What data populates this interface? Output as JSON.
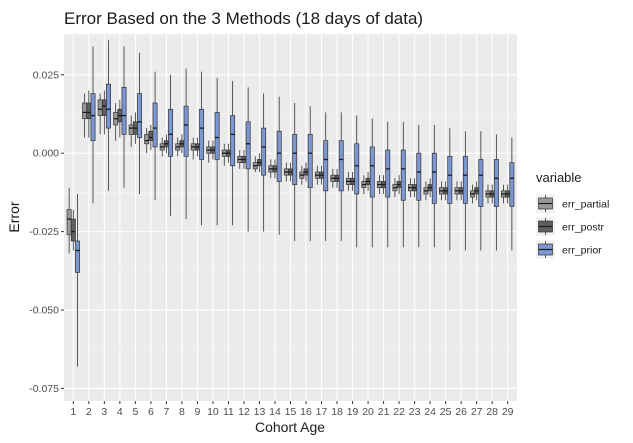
{
  "chart_data": {
    "type": "boxplot",
    "title": "Error Based on the 3 Methods (18 days of data)",
    "xlabel": "Cohort Age",
    "ylabel": "Error",
    "categories": [
      "1",
      "2",
      "3",
      "4",
      "5",
      "6",
      "7",
      "8",
      "9",
      "10",
      "11",
      "12",
      "13",
      "14",
      "15",
      "16",
      "17",
      "18",
      "19",
      "20",
      "21",
      "22",
      "23",
      "24",
      "25",
      "26",
      "27",
      "28",
      "29"
    ],
    "ylim": [
      -0.079,
      0.038
    ],
    "yticks": [
      -0.075,
      -0.05,
      -0.025,
      0.0,
      0.025
    ],
    "ytick_labels": [
      "-0.075",
      "-0.050",
      "-0.025",
      "0.000",
      "0.025"
    ],
    "grid": true,
    "legend": {
      "title": "variable",
      "placement": "right"
    },
    "series": [
      {
        "name": "err_partial",
        "color": "#999999",
        "boxes": [
          {
            "min": -0.032,
            "q1": -0.026,
            "median": -0.021,
            "q3": -0.018,
            "max": -0.011
          },
          {
            "min": 0.005,
            "q1": 0.011,
            "median": 0.013,
            "q3": 0.016,
            "max": 0.019
          },
          {
            "min": 0.006,
            "q1": 0.012,
            "median": 0.014,
            "q3": 0.017,
            "max": 0.019
          },
          {
            "min": 0.004,
            "q1": 0.009,
            "median": 0.011,
            "q3": 0.013,
            "max": 0.016
          },
          {
            "min": 0.002,
            "q1": 0.006,
            "median": 0.008,
            "q3": 0.009,
            "max": 0.012
          },
          {
            "min": 0.0,
            "q1": 0.003,
            "median": 0.004,
            "q3": 0.006,
            "max": 0.008
          },
          {
            "min": -0.001,
            "q1": 0.001,
            "median": 0.002,
            "q3": 0.003,
            "max": 0.005
          },
          {
            "min": -0.001,
            "q1": 0.001,
            "median": 0.002,
            "q3": 0.003,
            "max": 0.005
          },
          {
            "min": -0.002,
            "q1": 0.001,
            "median": 0.002,
            "q3": 0.003,
            "max": 0.005
          },
          {
            "min": -0.003,
            "q1": 0.0,
            "median": 0.001,
            "q3": 0.002,
            "max": 0.004
          },
          {
            "min": -0.004,
            "q1": -0.001,
            "median": 0.0,
            "q3": 0.001,
            "max": 0.003
          },
          {
            "min": -0.005,
            "q1": -0.003,
            "median": -0.002,
            "q3": -0.001,
            "max": 0.001
          },
          {
            "min": -0.006,
            "q1": -0.005,
            "median": -0.004,
            "q3": -0.003,
            "max": -0.001
          },
          {
            "min": -0.008,
            "q1": -0.006,
            "median": -0.005,
            "q3": -0.004,
            "max": -0.002
          },
          {
            "min": -0.009,
            "q1": -0.007,
            "median": -0.006,
            "q3": -0.005,
            "max": -0.003
          },
          {
            "min": -0.01,
            "q1": -0.008,
            "median": -0.007,
            "q3": -0.006,
            "max": -0.004
          },
          {
            "min": -0.01,
            "q1": -0.008,
            "median": -0.007,
            "q3": -0.006,
            "max": -0.004
          },
          {
            "min": -0.011,
            "q1": -0.009,
            "median": -0.008,
            "q3": -0.007,
            "max": -0.005
          },
          {
            "min": -0.012,
            "q1": -0.01,
            "median": -0.009,
            "q3": -0.008,
            "max": -0.006
          },
          {
            "min": -0.013,
            "q1": -0.011,
            "median": -0.01,
            "q3": -0.009,
            "max": -0.007
          },
          {
            "min": -0.013,
            "q1": -0.011,
            "median": -0.01,
            "q3": -0.009,
            "max": -0.007
          },
          {
            "min": -0.014,
            "q1": -0.012,
            "median": -0.011,
            "q3": -0.01,
            "max": -0.008
          },
          {
            "min": -0.014,
            "q1": -0.012,
            "median": -0.011,
            "q3": -0.01,
            "max": -0.008
          },
          {
            "min": -0.015,
            "q1": -0.013,
            "median": -0.012,
            "q3": -0.011,
            "max": -0.009
          },
          {
            "min": -0.015,
            "q1": -0.013,
            "median": -0.012,
            "q3": -0.011,
            "max": -0.009
          },
          {
            "min": -0.015,
            "q1": -0.013,
            "median": -0.012,
            "q3": -0.011,
            "max": -0.009
          },
          {
            "min": -0.016,
            "q1": -0.014,
            "median": -0.013,
            "q3": -0.012,
            "max": -0.01
          },
          {
            "min": -0.016,
            "q1": -0.014,
            "median": -0.013,
            "q3": -0.012,
            "max": -0.01
          },
          {
            "min": -0.016,
            "q1": -0.014,
            "median": -0.013,
            "q3": -0.012,
            "max": -0.01
          }
        ]
      },
      {
        "name": "err_postr",
        "color": "#5f5f5f",
        "boxes": [
          {
            "min": -0.031,
            "q1": -0.028,
            "median": -0.025,
            "q3": -0.021,
            "max": -0.018
          },
          {
            "min": 0.005,
            "q1": 0.011,
            "median": 0.013,
            "q3": 0.016,
            "max": 0.02
          },
          {
            "min": 0.006,
            "q1": 0.012,
            "median": 0.015,
            "q3": 0.017,
            "max": 0.02
          },
          {
            "min": 0.005,
            "q1": 0.01,
            "median": 0.012,
            "q3": 0.014,
            "max": 0.017
          },
          {
            "min": 0.003,
            "q1": 0.006,
            "median": 0.008,
            "q3": 0.01,
            "max": 0.013
          },
          {
            "min": 0.001,
            "q1": 0.004,
            "median": 0.005,
            "q3": 0.007,
            "max": 0.009
          },
          {
            "min": 0.0,
            "q1": 0.002,
            "median": 0.003,
            "q3": 0.004,
            "max": 0.006
          },
          {
            "min": 0.0,
            "q1": 0.002,
            "median": 0.003,
            "q3": 0.004,
            "max": 0.006
          },
          {
            "min": -0.001,
            "q1": 0.001,
            "median": 0.002,
            "q3": 0.003,
            "max": 0.005
          },
          {
            "min": -0.002,
            "q1": 0.0,
            "median": 0.001,
            "q3": 0.002,
            "max": 0.004
          },
          {
            "min": -0.003,
            "q1": -0.001,
            "median": 0.0,
            "q3": 0.001,
            "max": 0.003
          },
          {
            "min": -0.005,
            "q1": -0.003,
            "median": -0.002,
            "q3": -0.001,
            "max": 0.001
          },
          {
            "min": -0.006,
            "q1": -0.004,
            "median": -0.003,
            "q3": -0.002,
            "max": 0.0
          },
          {
            "min": -0.008,
            "q1": -0.006,
            "median": -0.005,
            "q3": -0.004,
            "max": -0.002
          },
          {
            "min": -0.009,
            "q1": -0.007,
            "median": -0.006,
            "q3": -0.005,
            "max": -0.003
          },
          {
            "min": -0.009,
            "q1": -0.007,
            "median": -0.006,
            "q3": -0.005,
            "max": -0.003
          },
          {
            "min": -0.01,
            "q1": -0.008,
            "median": -0.007,
            "q3": -0.006,
            "max": -0.004
          },
          {
            "min": -0.011,
            "q1": -0.009,
            "median": -0.008,
            "q3": -0.007,
            "max": -0.005
          },
          {
            "min": -0.012,
            "q1": -0.01,
            "median": -0.009,
            "q3": -0.008,
            "max": -0.006
          },
          {
            "min": -0.012,
            "q1": -0.01,
            "median": -0.009,
            "q3": -0.008,
            "max": -0.006
          },
          {
            "min": -0.013,
            "q1": -0.011,
            "median": -0.01,
            "q3": -0.009,
            "max": -0.007
          },
          {
            "min": -0.013,
            "q1": -0.011,
            "median": -0.01,
            "q3": -0.009,
            "max": -0.007
          },
          {
            "min": -0.014,
            "q1": -0.012,
            "median": -0.011,
            "q3": -0.01,
            "max": -0.008
          },
          {
            "min": -0.014,
            "q1": -0.012,
            "median": -0.011,
            "q3": -0.01,
            "max": -0.008
          },
          {
            "min": -0.015,
            "q1": -0.013,
            "median": -0.012,
            "q3": -0.011,
            "max": -0.009
          },
          {
            "min": -0.015,
            "q1": -0.013,
            "median": -0.012,
            "q3": -0.011,
            "max": -0.009
          },
          {
            "min": -0.015,
            "q1": -0.013,
            "median": -0.012,
            "q3": -0.011,
            "max": -0.009
          },
          {
            "min": -0.016,
            "q1": -0.014,
            "median": -0.013,
            "q3": -0.012,
            "max": -0.01
          },
          {
            "min": -0.016,
            "q1": -0.014,
            "median": -0.013,
            "q3": -0.012,
            "max": -0.01
          }
        ]
      },
      {
        "name": "err_prior",
        "color": "#7b96d1",
        "boxes": [
          {
            "min": -0.068,
            "q1": -0.038,
            "median": -0.031,
            "q3": -0.028,
            "max": -0.013
          },
          {
            "min": -0.016,
            "q1": 0.004,
            "median": 0.012,
            "q3": 0.019,
            "max": 0.034
          },
          {
            "min": -0.012,
            "q1": 0.008,
            "median": 0.014,
            "q3": 0.022,
            "max": 0.036
          },
          {
            "min": -0.011,
            "q1": 0.006,
            "median": 0.012,
            "q3": 0.021,
            "max": 0.034
          },
          {
            "min": -0.013,
            "q1": 0.005,
            "median": 0.01,
            "q3": 0.019,
            "max": 0.032
          },
          {
            "min": -0.015,
            "q1": 0.002,
            "median": 0.008,
            "q3": 0.016,
            "max": 0.026
          },
          {
            "min": -0.02,
            "q1": -0.001,
            "median": 0.006,
            "q3": 0.014,
            "max": 0.025
          },
          {
            "min": -0.021,
            "q1": -0.001,
            "median": 0.009,
            "q3": 0.015,
            "max": 0.027
          },
          {
            "min": -0.023,
            "q1": -0.002,
            "median": 0.008,
            "q3": 0.014,
            "max": 0.026
          },
          {
            "min": -0.023,
            "q1": -0.002,
            "median": 0.005,
            "q3": 0.013,
            "max": 0.024
          },
          {
            "min": -0.023,
            "q1": -0.004,
            "median": 0.006,
            "q3": 0.012,
            "max": 0.023
          },
          {
            "min": -0.025,
            "q1": -0.005,
            "median": 0.003,
            "q3": 0.01,
            "max": 0.021
          },
          {
            "min": -0.025,
            "q1": -0.007,
            "median": 0.002,
            "q3": 0.008,
            "max": 0.019
          },
          {
            "min": -0.026,
            "q1": -0.009,
            "median": 0.0,
            "q3": 0.007,
            "max": 0.018
          },
          {
            "min": -0.028,
            "q1": -0.01,
            "median": 0.0,
            "q3": 0.006,
            "max": 0.016
          },
          {
            "min": -0.028,
            "q1": -0.011,
            "median": 0.0,
            "q3": 0.006,
            "max": 0.015
          },
          {
            "min": -0.028,
            "q1": -0.012,
            "median": -0.002,
            "q3": 0.004,
            "max": 0.013
          },
          {
            "min": -0.028,
            "q1": -0.012,
            "median": -0.002,
            "q3": 0.004,
            "max": 0.013
          },
          {
            "min": -0.03,
            "q1": -0.013,
            "median": -0.004,
            "q3": 0.003,
            "max": 0.012
          },
          {
            "min": -0.03,
            "q1": -0.014,
            "median": -0.004,
            "q3": 0.002,
            "max": 0.011
          },
          {
            "min": -0.03,
            "q1": -0.014,
            "median": -0.005,
            "q3": 0.001,
            "max": 0.01
          },
          {
            "min": -0.03,
            "q1": -0.015,
            "median": -0.005,
            "q3": 0.001,
            "max": 0.01
          },
          {
            "min": -0.03,
            "q1": -0.015,
            "median": -0.006,
            "q3": 0.0,
            "max": 0.009
          },
          {
            "min": -0.03,
            "q1": -0.016,
            "median": -0.006,
            "q3": 0.0,
            "max": 0.009
          },
          {
            "min": -0.031,
            "q1": -0.016,
            "median": -0.007,
            "q3": -0.001,
            "max": 0.008
          },
          {
            "min": -0.031,
            "q1": -0.016,
            "median": -0.007,
            "q3": -0.001,
            "max": 0.007
          },
          {
            "min": -0.031,
            "q1": -0.017,
            "median": -0.007,
            "q3": -0.002,
            "max": 0.007
          },
          {
            "min": -0.031,
            "q1": -0.017,
            "median": -0.008,
            "q3": -0.002,
            "max": 0.006
          },
          {
            "min": -0.031,
            "q1": -0.017,
            "median": -0.008,
            "q3": -0.003,
            "max": 0.005
          }
        ]
      }
    ]
  }
}
